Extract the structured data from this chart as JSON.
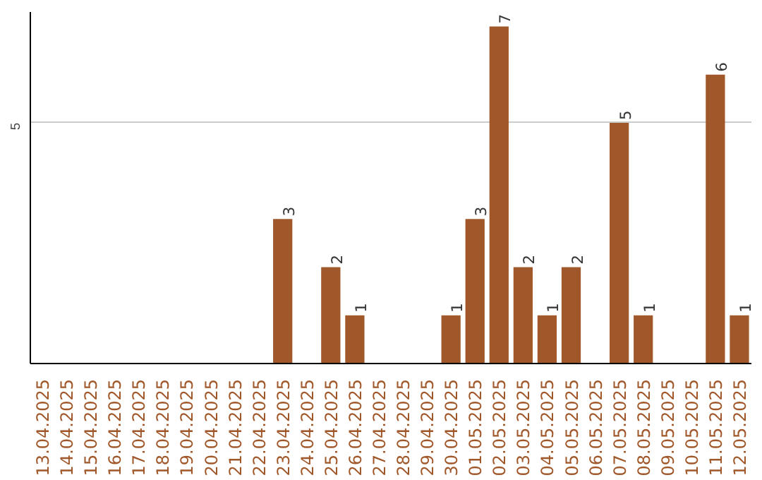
{
  "chart_data": {
    "type": "bar",
    "categories": [
      "13.04.2025",
      "14.04.2025",
      "15.04.2025",
      "16.04.2025",
      "17.04.2025",
      "18.04.2025",
      "19.04.2025",
      "20.04.2025",
      "21.04.2025",
      "22.04.2025",
      "23.04.2025",
      "24.04.2025",
      "25.04.2025",
      "26.04.2025",
      "27.04.2025",
      "28.04.2025",
      "29.04.2025",
      "30.04.2025",
      "01.05.2025",
      "02.05.2025",
      "03.05.2025",
      "04.05.2025",
      "05.05.2025",
      "06.05.2025",
      "07.05.2025",
      "08.05.2025",
      "09.05.2025",
      "10.05.2025",
      "11.05.2025",
      "12.05.2025"
    ],
    "values": [
      0,
      0,
      0,
      0,
      0,
      0,
      0,
      0,
      0,
      0,
      3,
      0,
      2,
      1,
      0,
      0,
      0,
      1,
      3,
      7,
      2,
      1,
      2,
      0,
      5,
      1,
      0,
      0,
      6,
      1
    ],
    "value_labels": [
      null,
      null,
      null,
      null,
      null,
      null,
      null,
      null,
      null,
      null,
      "3",
      null,
      "2",
      "1",
      null,
      null,
      null,
      "1",
      "3",
      "7",
      "2",
      "1",
      "2",
      null,
      "5",
      "1",
      null,
      null,
      "6",
      "1"
    ],
    "color": "#a0582a",
    "ylim": [
      0,
      7.3
    ],
    "yticks": [
      5
    ],
    "grid": "y"
  }
}
